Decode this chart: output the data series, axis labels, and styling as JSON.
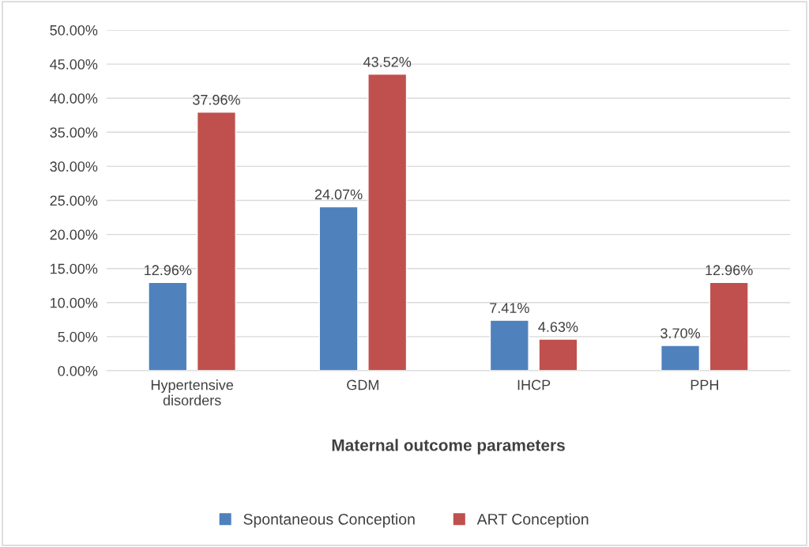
{
  "chart_data": {
    "type": "bar",
    "categories": [
      "Hypertensive\ndisorders",
      "GDM",
      "IHCP",
      "PPH"
    ],
    "xlabel": "Maternal outcome parameters",
    "series": [
      {
        "name": "Spontaneous Conception",
        "color": "#4f81bd",
        "values": [
          12.96,
          24.07,
          7.41,
          3.7
        ],
        "value_labels": [
          "12.96%",
          "24.07%",
          "7.41%",
          "3.70%"
        ]
      },
      {
        "name": "ART Conception",
        "color": "#c0504d",
        "values": [
          37.96,
          43.52,
          4.63,
          12.96
        ],
        "value_labels": [
          "37.96%",
          "43.52%",
          "4.63%",
          "12.96%"
        ]
      }
    ],
    "ylim": [
      0,
      50
    ],
    "yticks": [
      {
        "value": 0,
        "label": "0.00%"
      },
      {
        "value": 5,
        "label": "5.00%"
      },
      {
        "value": 10,
        "label": "10.00%"
      },
      {
        "value": 15,
        "label": "15.00%"
      },
      {
        "value": 20,
        "label": "20.00%"
      },
      {
        "value": 25,
        "label": "25.00%"
      },
      {
        "value": 30,
        "label": "30.00%"
      },
      {
        "value": 35,
        "label": "35.00%"
      },
      {
        "value": 40,
        "label": "40.00%"
      },
      {
        "value": 45,
        "label": "45.00%"
      },
      {
        "value": 50,
        "label": "50.00%"
      }
    ],
    "grid": "y",
    "legend": "bottom"
  }
}
